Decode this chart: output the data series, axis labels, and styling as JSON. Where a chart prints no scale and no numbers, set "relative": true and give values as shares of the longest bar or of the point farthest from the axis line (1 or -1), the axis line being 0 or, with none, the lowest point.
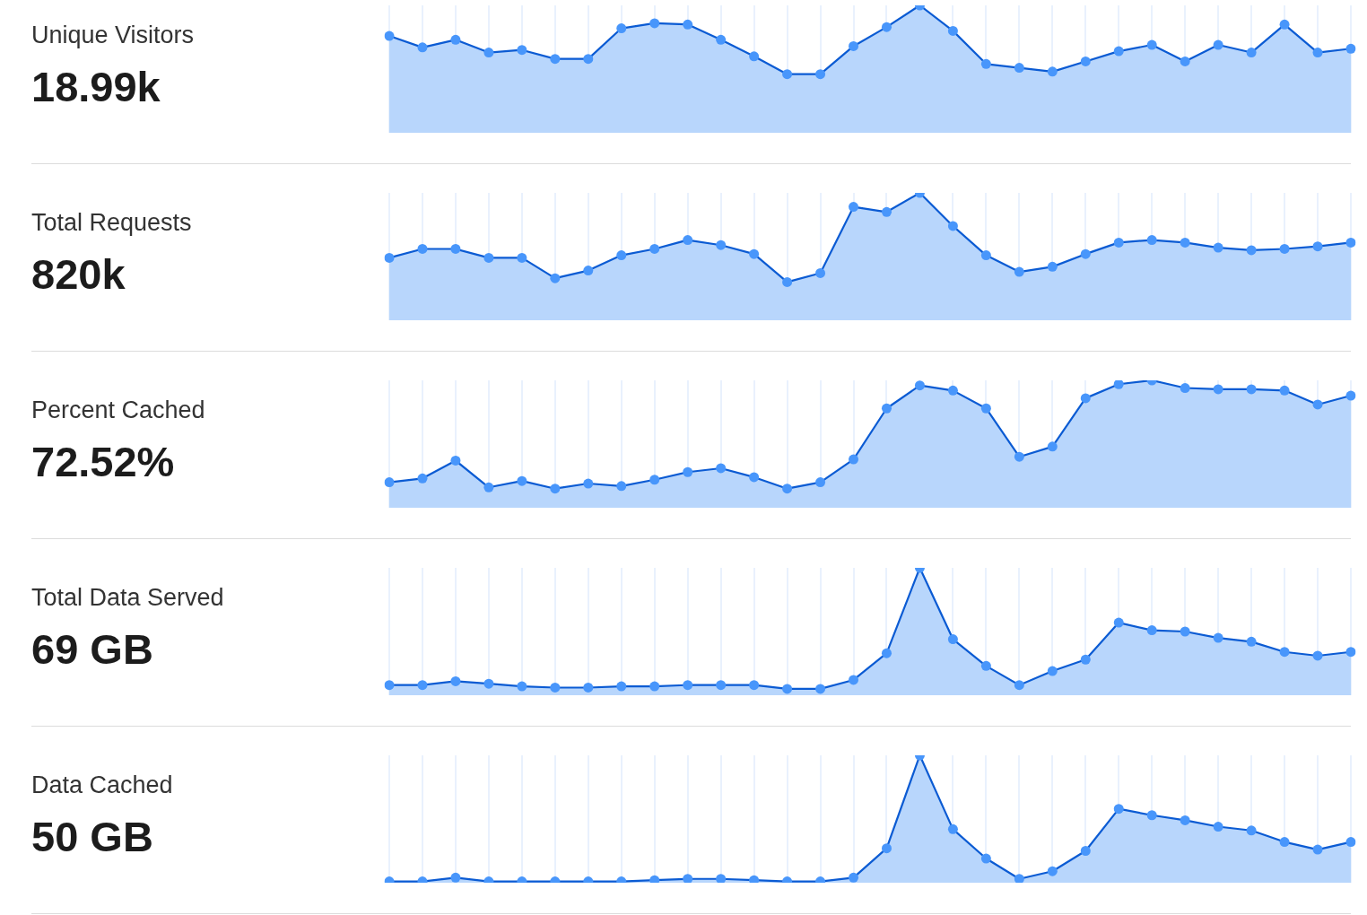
{
  "chart_data": [
    {
      "type": "area",
      "ylabel": "Unique Visitors",
      "subtitle": "18.99k",
      "relative": true,
      "grid": "x",
      "tick_labels": false,
      "marker": "circle",
      "color": "#0b5bd3",
      "categories": [
        null,
        null,
        null,
        null,
        null,
        null,
        null,
        null,
        null,
        null,
        null,
        null,
        null,
        null,
        null,
        null,
        null,
        null,
        null,
        null,
        null,
        null,
        null,
        null,
        null,
        null,
        null,
        null,
        null,
        null
      ],
      "values": [
        0.76,
        0.67,
        0.73,
        0.63,
        0.65,
        0.58,
        0.58,
        0.82,
        0.86,
        0.85,
        0.73,
        0.6,
        0.46,
        0.46,
        0.68,
        0.83,
        1,
        0.8,
        0.54,
        0.51,
        0.48,
        0.56,
        0.64,
        0.69,
        0.56,
        0.69,
        0.63,
        0.85,
        0.63,
        0.66
      ]
    },
    {
      "type": "area",
      "ylabel": "Total Requests",
      "subtitle": "820k",
      "relative": true,
      "grid": "x",
      "tick_labels": false,
      "marker": "circle",
      "color": "#0b5bd3",
      "categories": [
        null,
        null,
        null,
        null,
        null,
        null,
        null,
        null,
        null,
        null,
        null,
        null,
        null,
        null,
        null,
        null,
        null,
        null,
        null,
        null,
        null,
        null,
        null,
        null,
        null,
        null,
        null,
        null,
        null,
        null
      ],
      "values": [
        0.49,
        0.56,
        0.56,
        0.49,
        0.49,
        0.33,
        0.39,
        0.51,
        0.56,
        0.63,
        0.59,
        0.52,
        0.3,
        0.37,
        0.89,
        0.85,
        1,
        0.74,
        0.51,
        0.38,
        0.42,
        0.52,
        0.61,
        0.63,
        0.61,
        0.57,
        0.55,
        0.56,
        0.58,
        0.61
      ]
    },
    {
      "type": "area",
      "ylabel": "Percent Cached",
      "subtitle": "72.52%",
      "relative": true,
      "grid": "x",
      "tick_labels": false,
      "marker": "circle",
      "color": "#0b5bd3",
      "categories": [
        null,
        null,
        null,
        null,
        null,
        null,
        null,
        null,
        null,
        null,
        null,
        null,
        null,
        null,
        null,
        null,
        null,
        null,
        null,
        null,
        null,
        null,
        null,
        null,
        null,
        null,
        null,
        null,
        null,
        null
      ],
      "values": [
        0.2,
        0.23,
        0.37,
        0.16,
        0.21,
        0.15,
        0.19,
        0.17,
        0.22,
        0.28,
        0.31,
        0.24,
        0.15,
        0.2,
        0.38,
        0.78,
        0.96,
        0.92,
        0.78,
        0.4,
        0.48,
        0.86,
        0.97,
        1,
        0.94,
        0.93,
        0.93,
        0.92,
        0.81,
        0.88
      ]
    },
    {
      "type": "area",
      "ylabel": "Total Data Served",
      "subtitle": "69 GB",
      "relative": true,
      "grid": "x",
      "tick_labels": false,
      "marker": "circle",
      "color": "#0b5bd3",
      "categories": [
        null,
        null,
        null,
        null,
        null,
        null,
        null,
        null,
        null,
        null,
        null,
        null,
        null,
        null,
        null,
        null,
        null,
        null,
        null,
        null,
        null,
        null,
        null,
        null,
        null,
        null,
        null,
        null,
        null,
        null
      ],
      "values": [
        0.08,
        0.08,
        0.11,
        0.09,
        0.07,
        0.06,
        0.06,
        0.07,
        0.07,
        0.08,
        0.08,
        0.08,
        0.05,
        0.05,
        0.12,
        0.33,
        1,
        0.44,
        0.23,
        0.08,
        0.19,
        0.28,
        0.57,
        0.51,
        0.5,
        0.45,
        0.42,
        0.34,
        0.31,
        0.34
      ]
    },
    {
      "type": "area",
      "ylabel": "Data Cached",
      "subtitle": "50 GB",
      "relative": true,
      "grid": "x",
      "tick_labels": false,
      "marker": "circle",
      "color": "#0b5bd3",
      "categories": [
        null,
        null,
        null,
        null,
        null,
        null,
        null,
        null,
        null,
        null,
        null,
        null,
        null,
        null,
        null,
        null,
        null,
        null,
        null,
        null,
        null,
        null,
        null,
        null,
        null,
        null,
        null,
        null,
        null,
        null
      ],
      "values": [
        0.01,
        0.01,
        0.04,
        0.01,
        0.01,
        0.01,
        0.01,
        0.01,
        0.02,
        0.03,
        0.03,
        0.02,
        0.01,
        0.01,
        0.04,
        0.27,
        1,
        0.42,
        0.19,
        0.03,
        0.09,
        0.25,
        0.58,
        0.53,
        0.49,
        0.44,
        0.41,
        0.32,
        0.26,
        0.32
      ]
    }
  ]
}
